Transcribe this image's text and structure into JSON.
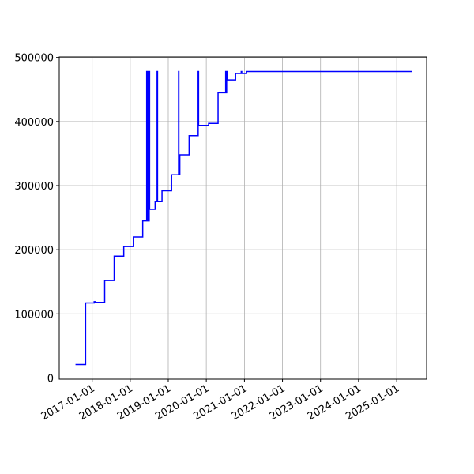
{
  "chart_data": {
    "type": "line",
    "color": "#0000ff",
    "grid": true,
    "x": [
      "2016-07-25",
      "2016-10-30",
      "2016-10-30",
      "2017-01-20",
      "2017-01-20",
      "2017-01-28",
      "2017-01-28",
      "2017-05-01",
      "2017-05-01",
      "2017-07-31",
      "2017-07-31",
      "2017-10-31",
      "2017-10-31",
      "2018-01-31",
      "2018-01-31",
      "2018-05-01",
      "2018-05-01",
      "2018-06-08",
      "2018-06-08",
      "2018-06-12",
      "2018-06-12",
      "2018-06-16",
      "2018-06-16",
      "2018-06-20",
      "2018-06-20",
      "2018-06-24",
      "2018-06-24",
      "2018-06-28",
      "2018-06-28",
      "2018-07-02",
      "2018-07-02",
      "2018-07-06",
      "2018-07-06",
      "2018-08-28",
      "2018-08-28",
      "2018-09-16",
      "2018-09-16",
      "2018-09-20",
      "2018-09-20",
      "2018-11-02",
      "2018-11-02",
      "2019-02-02",
      "2019-02-02",
      "2019-04-10",
      "2019-04-10",
      "2019-04-13",
      "2019-04-13",
      "2019-04-22",
      "2019-04-22",
      "2019-07-20",
      "2019-07-20",
      "2019-10-15",
      "2019-10-15",
      "2019-10-19",
      "2019-10-19",
      "2020-01-23",
      "2020-01-23",
      "2020-04-23",
      "2020-04-23",
      "2020-07-05",
      "2020-07-05",
      "2020-07-08",
      "2020-07-08",
      "2020-07-14",
      "2020-07-14",
      "2020-07-17",
      "2020-07-17",
      "2020-10-08",
      "2020-10-08",
      "2020-12-01",
      "2020-12-01",
      "2020-12-06",
      "2020-12-06",
      "2021-01-22",
      "2021-01-22",
      "2025-05-25"
    ],
    "values": [
      21000,
      21000,
      117000,
      117000,
      119000,
      119000,
      118000,
      118000,
      152000,
      152000,
      190000,
      190000,
      205000,
      205000,
      220000,
      220000,
      245000,
      245000,
      478000,
      478000,
      245000,
      245000,
      478000,
      478000,
      245000,
      245000,
      478000,
      478000,
      245000,
      245000,
      478000,
      478000,
      263000,
      263000,
      275000,
      275000,
      478000,
      478000,
      275000,
      275000,
      292000,
      292000,
      317000,
      317000,
      478000,
      478000,
      317000,
      317000,
      348000,
      348000,
      378000,
      378000,
      478000,
      478000,
      394000,
      394000,
      397000,
      397000,
      445000,
      445000,
      478000,
      478000,
      445000,
      445000,
      478000,
      478000,
      465000,
      465000,
      475000,
      475000,
      478000,
      478000,
      475000,
      475000,
      478000,
      478000
    ],
    "xlim": [
      "2016-02-20",
      "2025-10-15"
    ],
    "xticks": [
      "2017-01-01",
      "2018-01-01",
      "2019-01-01",
      "2020-01-01",
      "2021-01-01",
      "2022-01-01",
      "2023-01-01",
      "2024-01-01",
      "2025-01-01"
    ],
    "ylim": [
      -1850,
      500850
    ],
    "yticks": [
      0,
      100000,
      200000,
      300000,
      400000,
      500000
    ]
  }
}
